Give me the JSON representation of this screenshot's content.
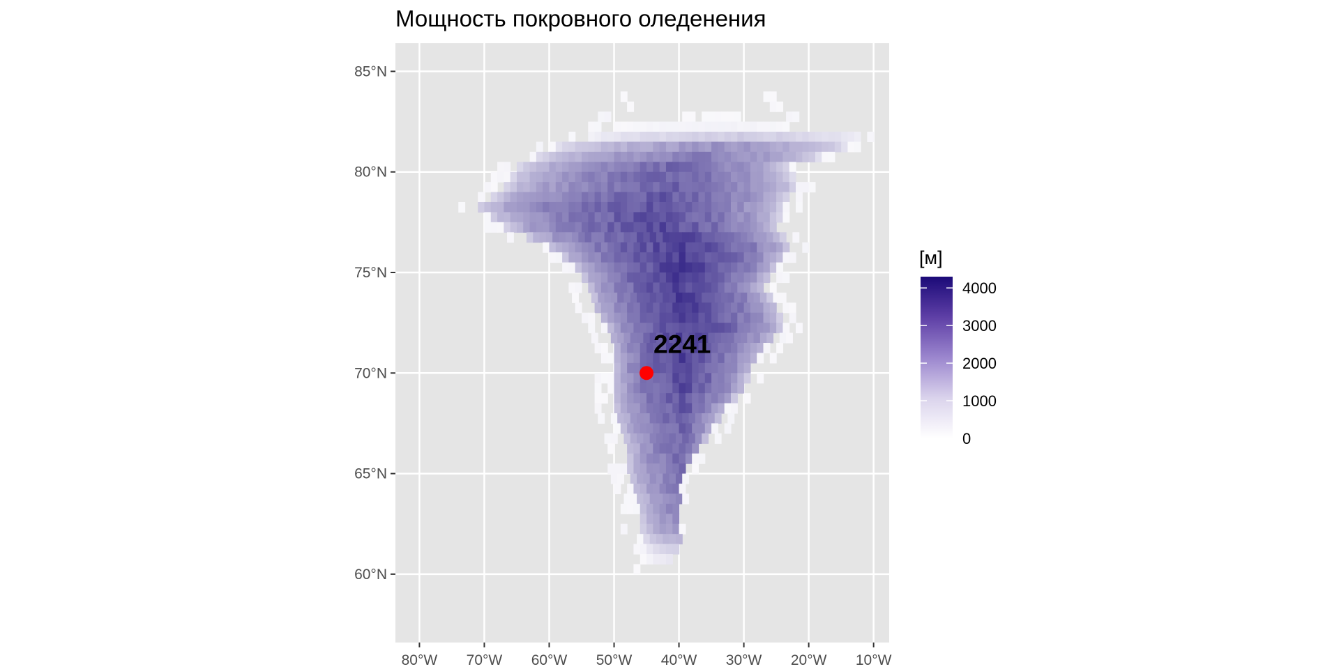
{
  "chart_data": {
    "type": "heatmap",
    "title": "Мощность покровного оледенения",
    "xlabel": "",
    "ylabel": "",
    "x_ticks": [
      {
        "value": -80,
        "label": "80°W"
      },
      {
        "value": -70,
        "label": "70°W"
      },
      {
        "value": -60,
        "label": "60°W"
      },
      {
        "value": -50,
        "label": "50°W"
      },
      {
        "value": -40,
        "label": "40°W"
      },
      {
        "value": -30,
        "label": "30°W"
      },
      {
        "value": -20,
        "label": "20°W"
      },
      {
        "value": -10,
        "label": "10°W"
      }
    ],
    "y_ticks": [
      {
        "value": 60,
        "label": "60°N"
      },
      {
        "value": 65,
        "label": "65°N"
      },
      {
        "value": 70,
        "label": "70°N"
      },
      {
        "value": 75,
        "label": "75°N"
      },
      {
        "value": 80,
        "label": "80°N"
      },
      {
        "value": 85,
        "label": "85°N"
      }
    ],
    "xlim": [
      -83.7,
      -7.6
    ],
    "ylim": [
      56.6,
      86.4
    ],
    "grid": true,
    "legend": {
      "title": "[м]",
      "position": "right",
      "ticks": [
        0,
        1000,
        2000,
        3000,
        4000
      ],
      "range": [
        0,
        4300
      ],
      "color_low": "#ffffff",
      "color_high": "#1b0a78"
    },
    "colors": {
      "panel": "#e5e5e5",
      "grid": "#ffffff",
      "point": "#ff0000"
    },
    "ice_thickness_profile": {
      "cell_lon_deg": 1.0,
      "cell_lat_deg": 0.5,
      "rows": [
        {
          "lat": 83.0,
          "west": -48,
          "east": -27,
          "max": 0
        },
        {
          "lat": 82.0,
          "west": -53,
          "east": -21,
          "max": 150
        },
        {
          "lat": 81.5,
          "west": -55,
          "east": -12,
          "max": 700
        },
        {
          "lat": 81.0,
          "west": -60,
          "east": -14,
          "max": 1700
        },
        {
          "lat": 80.0,
          "west": -66,
          "east": -23,
          "max": 2500
        },
        {
          "lat": 79.0,
          "west": -68,
          "east": -22,
          "max": 2700
        },
        {
          "lat": 78.0,
          "west": -72,
          "east": -24,
          "max": 2900
        },
        {
          "lat": 77.0,
          "west": -68,
          "east": -25,
          "max": 3100
        },
        {
          "lat": 76.0,
          "west": -61,
          "east": -23,
          "max": 3300
        },
        {
          "lat": 75.0,
          "west": -57,
          "east": -25,
          "max": 3350
        },
        {
          "lat": 74.0,
          "west": -55,
          "east": -27,
          "max": 3300
        },
        {
          "lat": 73.0,
          "west": -54,
          "east": -25,
          "max": 3300
        },
        {
          "lat": 72.0,
          "west": -52,
          "east": -24,
          "max": 3300
        },
        {
          "lat": 71.0,
          "west": -51,
          "east": -27,
          "max": 3250
        },
        {
          "lat": 70.0,
          "west": -51,
          "east": -29,
          "max": 3200
        },
        {
          "lat": 69.0,
          "west": -51,
          "east": -30,
          "max": 3000
        },
        {
          "lat": 68.0,
          "west": -51,
          "east": -33,
          "max": 2800
        },
        {
          "lat": 67.0,
          "west": -50,
          "east": -35,
          "max": 2600
        },
        {
          "lat": 66.0,
          "west": -49,
          "east": -37,
          "max": 2500
        },
        {
          "lat": 65.0,
          "west": -49,
          "east": -39,
          "max": 2400
        },
        {
          "lat": 64.0,
          "west": -48,
          "east": -40,
          "max": 2300
        },
        {
          "lat": 63.0,
          "west": -47,
          "east": -41,
          "max": 2100
        },
        {
          "lat": 62.0,
          "west": -47,
          "east": -42,
          "max": 1700
        },
        {
          "lat": 61.0,
          "west": -46,
          "east": -43,
          "max": 700
        },
        {
          "lat": 60.0,
          "west": -46,
          "east": -44,
          "max": 0
        }
      ],
      "core_lon": -40
    },
    "point": {
      "lon": -45,
      "lat": 70,
      "label": "2241"
    }
  }
}
